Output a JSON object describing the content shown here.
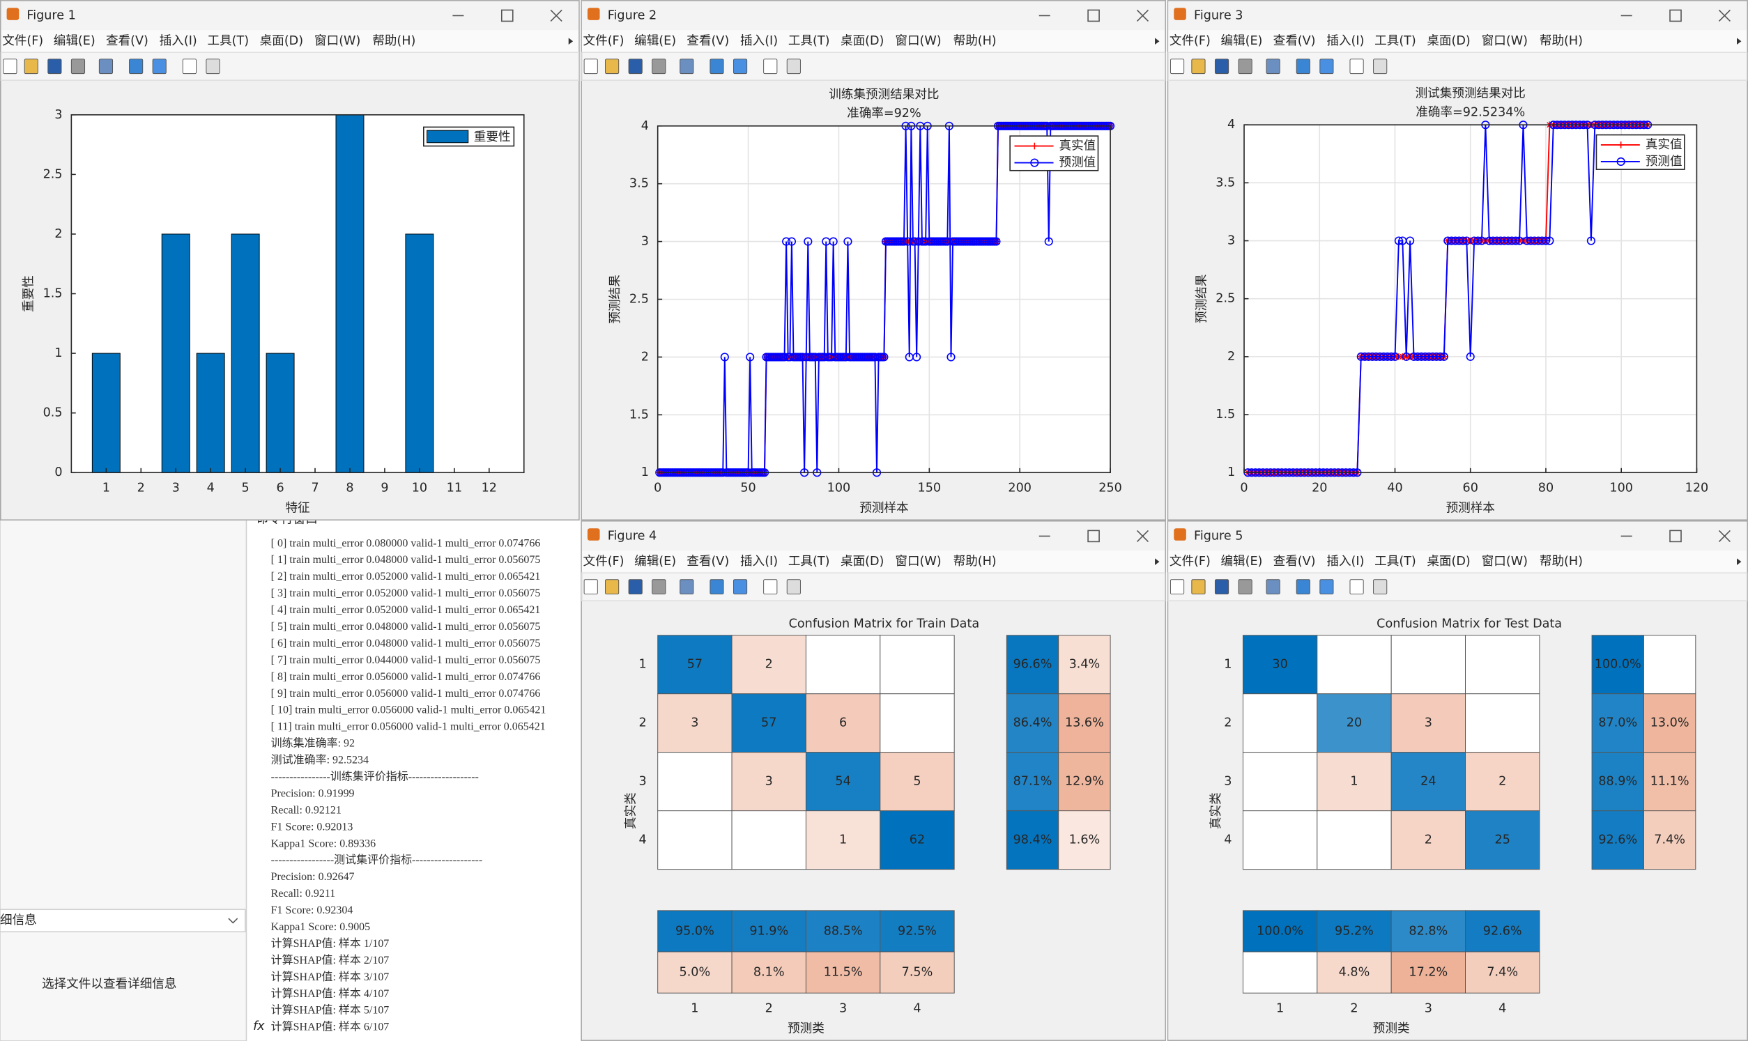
{
  "windows": [
    "Figure 1",
    "Figure 2",
    "Figure 3",
    "Figure 4",
    "Figure 5"
  ],
  "menu": [
    "文件(F)",
    "编辑(E)",
    "查看(V)",
    "插入(I)",
    "工具(T)",
    "桌面(D)",
    "窗口(W)",
    "帮助(H)"
  ],
  "command_window": {
    "title": "命令行窗口",
    "prompt": "fx",
    "lines": [
      "[  0]  train multi_error 0.080000  valid-1 multi_error 0.074766",
      "[  1]  train multi_error 0.048000  valid-1 multi_error 0.056075",
      "[  2]  train multi_error 0.052000  valid-1 multi_error 0.065421",
      "[  3]  train multi_error 0.052000  valid-1 multi_error 0.056075",
      "[  4]  train multi_error 0.052000  valid-1 multi_error 0.065421",
      "[  5]  train multi_error 0.048000  valid-1 multi_error 0.056075",
      "[  6]  train multi_error 0.048000  valid-1 multi_error 0.056075",
      "[  7]  train multi_error 0.044000  valid-1 multi_error 0.056075",
      "[  8]  train multi_error 0.056000  valid-1 multi_error 0.074766",
      "[  9]  train multi_error 0.056000  valid-1 multi_error 0.074766",
      "[ 10]  train multi_error 0.056000  valid-1 multi_error 0.065421",
      "[ 11]  train multi_error 0.056000  valid-1 multi_error 0.065421",
      "训练集准确率: 92",
      "测试准确率: 92.5234",
      "----------------训练集评价指标-------------------",
      "Precision: 0.91999",
      "Recall: 0.92121",
      "F1 Score: 0.92013",
      "Kappa1 Score: 0.89336",
      "-----------------测试集评价指标-------------------",
      "Precision: 0.92647",
      "Recall: 0.9211",
      "F1 Score: 0.92304",
      "Kappa1 Score: 0.9005",
      "计算SHAP值: 样本 1/107",
      "计算SHAP值: 样本 2/107",
      "计算SHAP值: 样本 3/107",
      "计算SHAP值: 样本 4/107",
      "计算SHAP值: 样本 5/107",
      "计算SHAP值: 样本 6/107"
    ]
  },
  "details_panel": {
    "title": "细信息",
    "message": "选择文件以查看详细信息"
  },
  "chart_data": [
    {
      "type": "bar",
      "xlabel": "特征",
      "ylabel": "重要性",
      "categories": [
        "1",
        "2",
        "3",
        "4",
        "5",
        "6",
        "7",
        "8",
        "9",
        "10",
        "11",
        "12"
      ],
      "series": [
        {
          "name": "重要性",
          "color": "#0072bd",
          "values": [
            1,
            0,
            2,
            1,
            2,
            1,
            0,
            3,
            0,
            2,
            0,
            0
          ]
        }
      ],
      "ylim": [
        0,
        3
      ],
      "yticks": [
        0,
        0.5,
        1,
        1.5,
        2,
        2.5,
        3
      ],
      "grid": false,
      "legend": "upper right"
    },
    {
      "type": "line",
      "title": "训练集预测结果对比",
      "subtitle": "准确率=92%",
      "xlabel": "预测样本",
      "ylabel": "预测结果",
      "xlim": [
        0,
        250
      ],
      "xticks": [
        0,
        50,
        100,
        150,
        200,
        250
      ],
      "ylim": [
        1,
        4
      ],
      "yticks": [
        1,
        1.5,
        2,
        2.5,
        3,
        3.5,
        4
      ],
      "grid": true,
      "legend": "upper right",
      "series": [
        {
          "name": "真实值",
          "color": "#ff0000",
          "marker": "*",
          "values": [
            1,
            1,
            1,
            1,
            1,
            1,
            1,
            1,
            1,
            1,
            1,
            1,
            1,
            1,
            1,
            1,
            1,
            1,
            1,
            1,
            1,
            1,
            1,
            1,
            1,
            1,
            1,
            1,
            1,
            1,
            1,
            1,
            1,
            1,
            1,
            1,
            1,
            1,
            1,
            1,
            1,
            1,
            1,
            1,
            1,
            1,
            1,
            1,
            1,
            1,
            1,
            1,
            1,
            1,
            1,
            1,
            1,
            1,
            1,
            2,
            2,
            2,
            2,
            2,
            2,
            2,
            2,
            2,
            2,
            2,
            2,
            2,
            2,
            2,
            2,
            2,
            2,
            2,
            2,
            2,
            2,
            2,
            2,
            2,
            2,
            2,
            2,
            2,
            2,
            2,
            2,
            2,
            2,
            2,
            2,
            2,
            2,
            2,
            2,
            2,
            2,
            2,
            2,
            2,
            2,
            2,
            2,
            2,
            2,
            2,
            2,
            2,
            2,
            2,
            2,
            2,
            2,
            2,
            2,
            2,
            2,
            2,
            2,
            2,
            2,
            3,
            3,
            3,
            3,
            3,
            3,
            3,
            3,
            3,
            3,
            3,
            3,
            3,
            3,
            3,
            3,
            3,
            3,
            3,
            3,
            3,
            3,
            3,
            3,
            3,
            3,
            3,
            3,
            3,
            3,
            3,
            3,
            3,
            3,
            3,
            3,
            3,
            3,
            3,
            3,
            3,
            3,
            3,
            3,
            3,
            3,
            3,
            3,
            3,
            3,
            3,
            3,
            3,
            3,
            3,
            3,
            3,
            3,
            3,
            3,
            3,
            3,
            4,
            4,
            4,
            4,
            4,
            4,
            4,
            4,
            4,
            4,
            4,
            4,
            4,
            4,
            4,
            4,
            4,
            4,
            4,
            4,
            4,
            4,
            4,
            4,
            4,
            4,
            4,
            4,
            4,
            4,
            4,
            4,
            4,
            4,
            4,
            4,
            4,
            4,
            4,
            4,
            4,
            4,
            4,
            4,
            4,
            4,
            4,
            4,
            4,
            4,
            4,
            4,
            4,
            4,
            4,
            4,
            4,
            4,
            4,
            4,
            4,
            4,
            4
          ]
        },
        {
          "name": "预测值",
          "color": "#0000ff",
          "marker": "o",
          "values": [
            1,
            1,
            1,
            1,
            1,
            1,
            1,
            1,
            1,
            1,
            1,
            1,
            1,
            1,
            1,
            1,
            1,
            1,
            1,
            1,
            1,
            1,
            1,
            1,
            1,
            1,
            1,
            1,
            1,
            1,
            1,
            1,
            1,
            1,
            1,
            1,
            2,
            1,
            1,
            1,
            1,
            1,
            1,
            1,
            1,
            1,
            1,
            1,
            1,
            1,
            2,
            1,
            1,
            1,
            1,
            1,
            1,
            1,
            1,
            2,
            2,
            2,
            2,
            2,
            2,
            2,
            2,
            2,
            2,
            2,
            3,
            2,
            2,
            3,
            2,
            2,
            2,
            2,
            2,
            2,
            1,
            2,
            3,
            2,
            2,
            2,
            2,
            1,
            2,
            2,
            2,
            2,
            3,
            2,
            2,
            2,
            3,
            2,
            2,
            2,
            2,
            2,
            2,
            2,
            3,
            2,
            2,
            2,
            2,
            2,
            2,
            2,
            2,
            2,
            2,
            2,
            2,
            2,
            2,
            2,
            1,
            2,
            2,
            2,
            2,
            3,
            3,
            3,
            3,
            3,
            3,
            3,
            3,
            3,
            3,
            3,
            4,
            3,
            2,
            4,
            3,
            3,
            2,
            3,
            4,
            3,
            3,
            3,
            4,
            3,
            3,
            3,
            3,
            3,
            3,
            3,
            3,
            3,
            3,
            3,
            4,
            2,
            3,
            3,
            3,
            3,
            3,
            3,
            3,
            3,
            3,
            3,
            3,
            3,
            3,
            3,
            3,
            3,
            3,
            3,
            3,
            3,
            3,
            3,
            3,
            3,
            3,
            4,
            4,
            4,
            4,
            4,
            4,
            4,
            4,
            4,
            4,
            4,
            4,
            4,
            4,
            4,
            4,
            4,
            4,
            4,
            4,
            4,
            4,
            4,
            4,
            4,
            4,
            4,
            4,
            3,
            4,
            4,
            4,
            4,
            4,
            4,
            4,
            4,
            4,
            4,
            4,
            4,
            4,
            4,
            4,
            4,
            4,
            4,
            4,
            4,
            4,
            4,
            4,
            4,
            4,
            4,
            4,
            4,
            4,
            4,
            4,
            4,
            4,
            4
          ]
        }
      ]
    },
    {
      "type": "line",
      "title": "测试集预测结果对比",
      "subtitle": "准确率=92.5234%",
      "xlabel": "预测样本",
      "ylabel": "预测结果",
      "xlim": [
        0,
        120
      ],
      "xticks": [
        0,
        20,
        40,
        60,
        80,
        100,
        120
      ],
      "ylim": [
        1,
        4
      ],
      "yticks": [
        1,
        1.5,
        2,
        2.5,
        3,
        3.5,
        4
      ],
      "grid": true,
      "legend": "upper right",
      "series": [
        {
          "name": "真实值",
          "color": "#ff0000",
          "marker": "*",
          "values": [
            1,
            1,
            1,
            1,
            1,
            1,
            1,
            1,
            1,
            1,
            1,
            1,
            1,
            1,
            1,
            1,
            1,
            1,
            1,
            1,
            1,
            1,
            1,
            1,
            1,
            1,
            1,
            1,
            1,
            1,
            2,
            2,
            2,
            2,
            2,
            2,
            2,
            2,
            2,
            2,
            2,
            2,
            2,
            2,
            2,
            2,
            2,
            2,
            2,
            2,
            2,
            2,
            2,
            3,
            3,
            3,
            3,
            3,
            3,
            3,
            3,
            3,
            3,
            3,
            3,
            3,
            3,
            3,
            3,
            3,
            3,
            3,
            3,
            3,
            3,
            3,
            3,
            3,
            3,
            3,
            4,
            4,
            4,
            4,
            4,
            4,
            4,
            4,
            4,
            4,
            4,
            4,
            4,
            4,
            4,
            4,
            4,
            4,
            4,
            4,
            4,
            4,
            4,
            4,
            4,
            4,
            4
          ]
        },
        {
          "name": "预测值",
          "color": "#0000ff",
          "marker": "o",
          "values": [
            1,
            1,
            1,
            1,
            1,
            1,
            1,
            1,
            1,
            1,
            1,
            1,
            1,
            1,
            1,
            1,
            1,
            1,
            1,
            1,
            1,
            1,
            1,
            1,
            1,
            1,
            1,
            1,
            1,
            1,
            2,
            2,
            2,
            2,
            2,
            2,
            2,
            2,
            2,
            2,
            3,
            3,
            2,
            3,
            2,
            2,
            2,
            2,
            2,
            2,
            2,
            2,
            2,
            3,
            3,
            3,
            3,
            3,
            3,
            2,
            3,
            3,
            3,
            4,
            3,
            3,
            3,
            3,
            3,
            3,
            3,
            3,
            3,
            4,
            3,
            3,
            3,
            3,
            3,
            3,
            3,
            4,
            4,
            4,
            4,
            4,
            4,
            4,
            4,
            4,
            4,
            3,
            4,
            4,
            4,
            4,
            4,
            4,
            4,
            4,
            4,
            4,
            4,
            4,
            4,
            4,
            4
          ]
        }
      ]
    },
    {
      "type": "confusion",
      "title": "Confusion Matrix for Train Data",
      "xlabel": "预测类",
      "ylabel": "真实类",
      "categories": [
        "1",
        "2",
        "3",
        "4"
      ],
      "diagonal_color": "#0072bd",
      "off_diagonal_color": "#d95319",
      "matrix": [
        [
          57,
          2,
          0,
          0
        ],
        [
          3,
          57,
          6,
          0
        ],
        [
          0,
          3,
          54,
          5
        ],
        [
          0,
          0,
          1,
          62
        ]
      ],
      "row_summary": {
        "values": [
          [
            96.6,
            3.4
          ],
          [
            86.4,
            13.6
          ],
          [
            87.1,
            12.9
          ],
          [
            98.4,
            1.6
          ]
        ],
        "value_labels": [
          [
            "96.6%",
            "3.4%"
          ],
          [
            "86.4%",
            "13.6%"
          ],
          [
            "87.1%",
            "12.9%"
          ],
          [
            "98.4%",
            "1.6%"
          ]
        ]
      },
      "column_summary": {
        "values": [
          [
            95.0,
            91.9,
            88.5,
            92.5
          ],
          [
            5.0,
            8.1,
            11.5,
            7.5
          ]
        ],
        "value_labels": [
          [
            "95.0%",
            "91.9%",
            "88.5%",
            "92.5%"
          ],
          [
            "5.0%",
            "8.1%",
            "11.5%",
            "7.5%"
          ]
        ]
      }
    },
    {
      "type": "confusion",
      "title": "Confusion Matrix for Test Data",
      "xlabel": "预测类",
      "ylabel": "真实类",
      "categories": [
        "1",
        "2",
        "3",
        "4"
      ],
      "diagonal_color": "#0072bd",
      "off_diagonal_color": "#d95319",
      "matrix": [
        [
          30,
          0,
          0,
          0
        ],
        [
          0,
          20,
          3,
          0
        ],
        [
          0,
          1,
          24,
          2
        ],
        [
          0,
          0,
          2,
          25
        ]
      ],
      "row_summary": {
        "values": [
          [
            100.0,
            null
          ],
          [
            87.0,
            13.0
          ],
          [
            88.9,
            11.1
          ],
          [
            92.6,
            7.4
          ]
        ],
        "value_labels": [
          [
            "100.0%",
            null
          ],
          [
            "87.0%",
            "13.0%"
          ],
          [
            "88.9%",
            "11.1%"
          ],
          [
            "92.6%",
            "7.4%"
          ]
        ]
      },
      "column_summary": {
        "values": [
          [
            100.0,
            95.2,
            82.8,
            92.6
          ],
          [
            null,
            4.8,
            17.2,
            7.4
          ]
        ],
        "value_labels": [
          [
            "100.0%",
            "95.2%",
            "82.8%",
            "92.6%"
          ],
          [
            null,
            "4.8%",
            "17.2%",
            "7.4%"
          ]
        ]
      }
    }
  ]
}
